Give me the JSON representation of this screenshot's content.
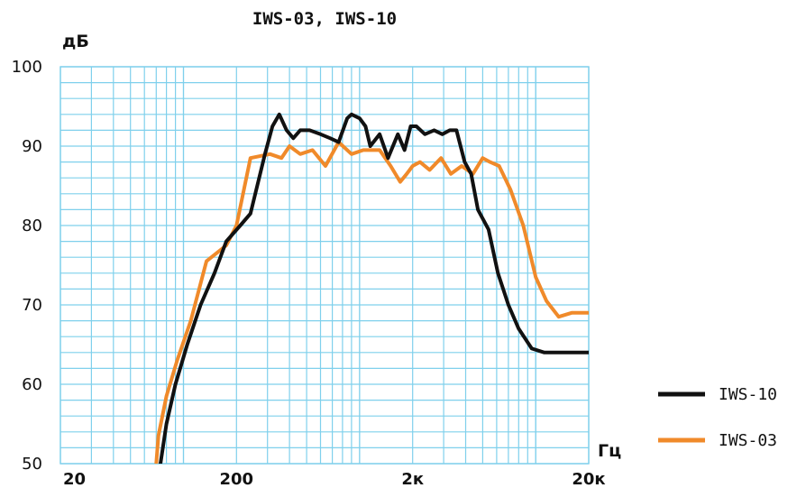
{
  "chart_data": {
    "type": "line",
    "title": "IWS-03, IWS-10",
    "ylabel": "дБ",
    "xlabel": "Гц",
    "x_scale": "log",
    "xlim": [
      20,
      20000
    ],
    "ylim": [
      50,
      100
    ],
    "y_ticks": [
      50,
      60,
      70,
      80,
      90,
      100
    ],
    "x_ticks": [
      {
        "value": 20,
        "label": "20"
      },
      {
        "value": 200,
        "label": "200"
      },
      {
        "value": 2000,
        "label": "2к"
      },
      {
        "value": 20000,
        "label": "20к"
      }
    ],
    "grid": true,
    "legend_position": "right",
    "series": [
      {
        "name": "IWS-10",
        "color": "#111111",
        "x": [
          74,
          80,
          90,
          105,
          125,
          150,
          175,
          210,
          240,
          290,
          320,
          350,
          385,
          420,
          460,
          520,
          600,
          680,
          760,
          850,
          900,
          1000,
          1080,
          1150,
          1300,
          1450,
          1650,
          1800,
          1950,
          2100,
          2350,
          2650,
          2950,
          3250,
          3550,
          3950,
          4300,
          4700,
          5400,
          6100,
          7000,
          8000,
          9500,
          11200,
          13000,
          15500,
          18000,
          20000
        ],
        "y": [
          50,
          55,
          60,
          65,
          70,
          74,
          78,
          80,
          81.5,
          89,
          92.5,
          94,
          92,
          91,
          92,
          92,
          91.5,
          91,
          90.5,
          93.5,
          94,
          93.5,
          92.5,
          90,
          91.5,
          88.5,
          91.5,
          89.5,
          92.5,
          92.5,
          91.5,
          92,
          91.5,
          92,
          92,
          88,
          86.5,
          82,
          79.5,
          74,
          70,
          67,
          64.5,
          64,
          64,
          64,
          64,
          64
        ]
      },
      {
        "name": "IWS-03",
        "color": "#f08a2a",
        "x": [
          70,
          72,
          80,
          92,
          110,
          135,
          175,
          200,
          240,
          310,
          360,
          400,
          460,
          540,
          640,
          760,
          900,
          1050,
          1150,
          1300,
          1500,
          1700,
          1850,
          2000,
          2200,
          2500,
          2900,
          3300,
          3800,
          4400,
          5000,
          5500,
          6200,
          7200,
          8500,
          10000,
          11500,
          13500,
          16000,
          20000
        ],
        "y": [
          50,
          53.5,
          58.5,
          63,
          68,
          75.5,
          77.5,
          80,
          88.5,
          89,
          88.5,
          90,
          89,
          89.5,
          87.5,
          90.5,
          89,
          89.5,
          89.5,
          89.5,
          87.5,
          85.5,
          86.5,
          87.5,
          88,
          87,
          88.5,
          86.5,
          87.5,
          86.5,
          88.5,
          88,
          87.5,
          84.5,
          80,
          73.5,
          70.5,
          68.5,
          69,
          69
        ]
      }
    ]
  }
}
